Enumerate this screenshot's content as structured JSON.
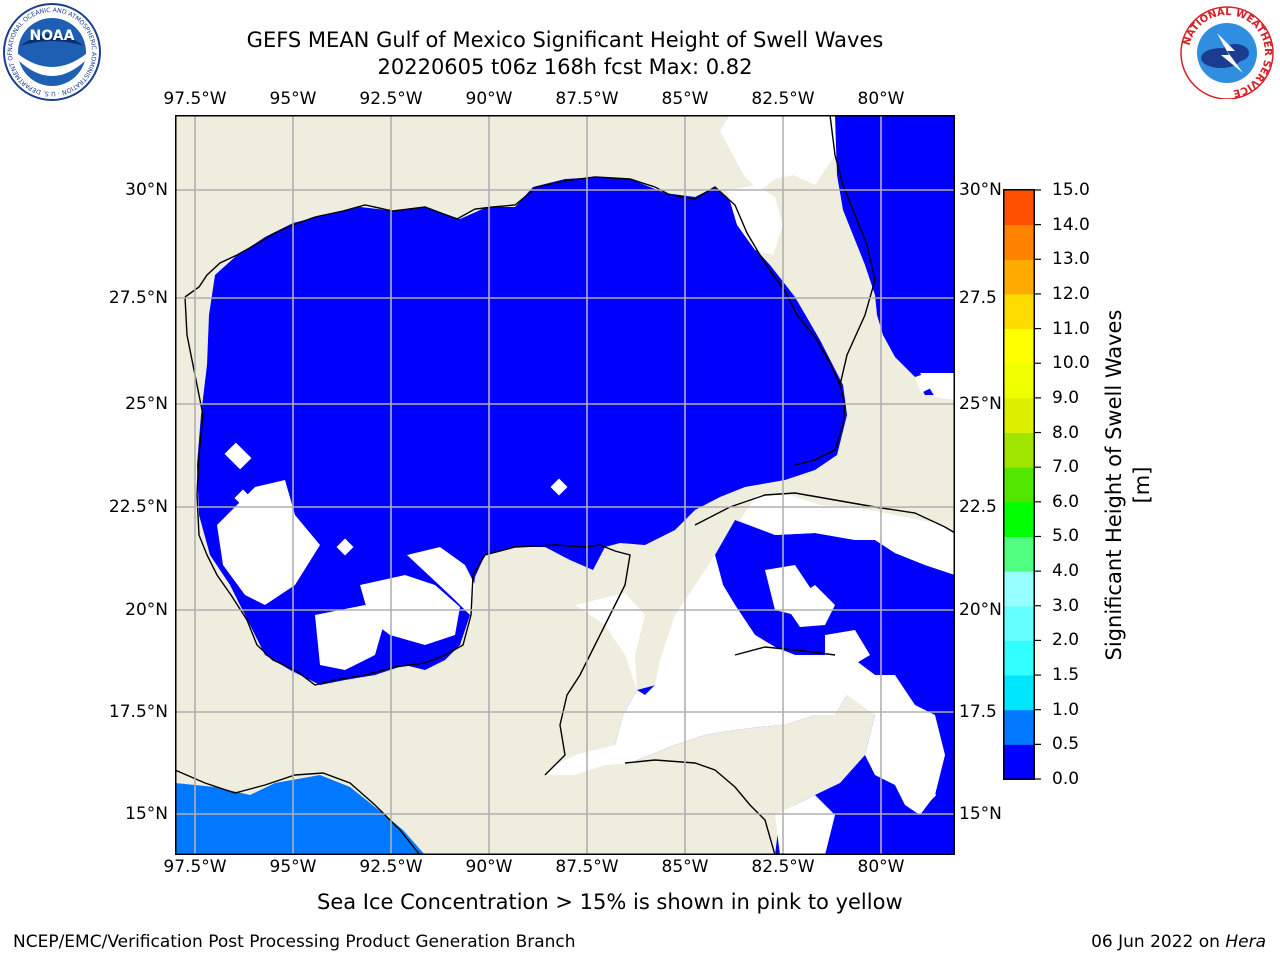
{
  "title_line1": "GEFS MEAN Gulf of Mexico Significant Height of Swell Waves",
  "title_line2": "20220605 t06z 168h fcst   Max: 0.82",
  "lon_ticks": [
    "97.5°W",
    "95°W",
    "92.5°W",
    "90°W",
    "87.5°W",
    "85°W",
    "82.5°W",
    "80°W"
  ],
  "lat_ticks_left": [
    "30°N",
    "27.5°N",
    "25°N",
    "22.5°N",
    "20°N",
    "17.5°N",
    "15°N"
  ],
  "lat_ticks_right": [
    "30°N",
    "27.5",
    "25°N",
    "22.5",
    "20°N",
    "17.5",
    "15°N"
  ],
  "colorbar": {
    "label": "Significant Height of Swell Waves [m]",
    "tick_labels": [
      "0.0",
      "0.5",
      "1.0",
      "1.5",
      "2.0",
      "3.0",
      "4.0",
      "5.0",
      "6.0",
      "7.0",
      "8.0",
      "9.0",
      "10.0",
      "11.0",
      "12.0",
      "13.0",
      "14.0",
      "15.0"
    ],
    "colors": [
      "#0000ff",
      "#0078ff",
      "#00e6ff",
      "#32ffff",
      "#64ffff",
      "#96ffff",
      "#50ff80",
      "#00ff00",
      "#50e600",
      "#a0e600",
      "#dcf000",
      "#f0ff00",
      "#ffff00",
      "#ffdc00",
      "#ffaa00",
      "#ff8200",
      "#ff5000",
      "#ff2800",
      "#ff0000"
    ]
  },
  "colors": {
    "land": "#efedde",
    "ocean_low": "#0000ff",
    "ocean_mid": "#0078ff",
    "no_data": "#ffffff",
    "grid": "#b0b0b0"
  },
  "caption": "Sea Ice Concentration > 15% is shown in pink to yellow",
  "footer_left": "NCEP/EMC/Verification Post Processing Product Generation Branch",
  "footer_date": "06 Jun 2022 on",
  "footer_machine": "Hera",
  "noaa_logo": {
    "text": "NOAA",
    "ring_text": "NATIONAL OCEANIC AND ATMOSPHERIC ADMINISTRATION · U.S. DEPARTMENT OF COMMERCE"
  },
  "nws_logo": {
    "ring_text": "NATIONAL WEATHER SERVICE"
  }
}
